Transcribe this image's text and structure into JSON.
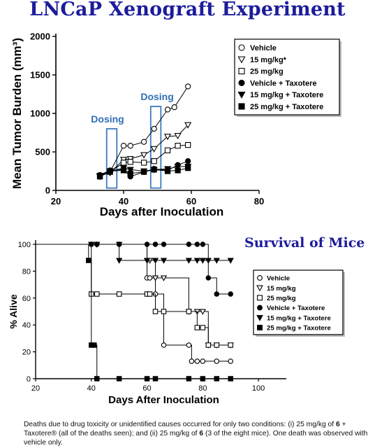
{
  "header": {
    "title": "LNCaP Xenograft Experiment"
  },
  "chart_data": [
    {
      "type": "line",
      "ylabel": "Mean Tumor Burden (mm³)",
      "xlabel": "Days after Inoculation",
      "xlim": [
        20,
        80
      ],
      "ylim": [
        0,
        2000
      ],
      "xticks": [
        "20",
        "40",
        "60",
        "80"
      ],
      "yticks": [
        "0",
        "500",
        "1000",
        "1500",
        "2000"
      ],
      "dosing_label": "Dosing",
      "dosing_windows": [
        [
          35,
          38
        ],
        [
          48,
          51
        ]
      ],
      "legend_position": "top-right",
      "series": [
        {
          "name": "Vehicle",
          "marker": "circle-open",
          "x": [
            33,
            36,
            40,
            42,
            46,
            49,
            53,
            55,
            59
          ],
          "y": [
            200,
            240,
            580,
            580,
            630,
            800,
            1050,
            1080,
            1350
          ]
        },
        {
          "name": "15 mg/kg*",
          "marker": "triangle-open",
          "x": [
            33,
            36,
            40,
            42,
            46,
            49,
            53,
            56,
            59
          ],
          "y": [
            190,
            230,
            400,
            410,
            460,
            540,
            700,
            710,
            850
          ]
        },
        {
          "name": "25 mg/kg",
          "marker": "square-open",
          "x": [
            33,
            36,
            40,
            42,
            46,
            49,
            53,
            56,
            59
          ],
          "y": [
            180,
            240,
            360,
            370,
            360,
            380,
            520,
            580,
            590
          ]
        },
        {
          "name": "Vehicle + Taxotere",
          "marker": "circle-filled",
          "x": [
            33,
            36,
            40,
            42,
            46,
            49,
            53,
            56,
            59
          ],
          "y": [
            200,
            260,
            270,
            180,
            240,
            280,
            260,
            330,
            380
          ]
        },
        {
          "name": "15 mg/kg + Taxotere",
          "marker": "triangle-filled",
          "x": [
            33,
            36,
            40,
            42,
            46,
            49,
            53,
            56,
            59
          ],
          "y": [
            180,
            250,
            290,
            270,
            250,
            270,
            280,
            310,
            310
          ]
        },
        {
          "name": "25 mg/kg + Taxotere",
          "marker": "square-filled",
          "x": [
            33,
            36,
            40,
            42,
            46,
            49,
            53,
            56,
            59
          ],
          "y": [
            190,
            250,
            260,
            220,
            240,
            270,
            250,
            260,
            290
          ]
        }
      ]
    },
    {
      "type": "line",
      "title": "Survival of Mice",
      "ylabel": "% Alive",
      "xlabel": "Days After Inoculation",
      "xlim": [
        20,
        110
      ],
      "ylim": [
        0,
        100
      ],
      "xticks": [
        "20",
        "40",
        "60",
        "80",
        "100"
      ],
      "yticks": [
        "0",
        "20",
        "40",
        "60",
        "80",
        "100"
      ],
      "legend_position": "right",
      "series": [
        {
          "name": "Vehicle",
          "marker": "circle-open",
          "x": [
            20,
            40,
            42,
            50,
            60,
            61,
            63,
            66,
            75,
            76,
            78,
            80,
            85,
            90
          ],
          "y": [
            100,
            100,
            100,
            100,
            75,
            75,
            63,
            25,
            25,
            13,
            13,
            13,
            13,
            13
          ]
        },
        {
          "name": "15 mg/kg",
          "marker": "triangle-open",
          "x": [
            20,
            40,
            42,
            50,
            60,
            61,
            63,
            66,
            75,
            78,
            80,
            82,
            85,
            90
          ],
          "y": [
            100,
            100,
            100,
            100,
            88,
            88,
            75,
            75,
            50,
            50,
            50,
            25,
            25,
            25
          ]
        },
        {
          "name": "25 mg/kg",
          "marker": "square-open",
          "x": [
            20,
            40,
            42,
            50,
            60,
            61,
            63,
            66,
            75,
            78,
            80,
            82,
            85,
            90
          ],
          "y": [
            100,
            63,
            63,
            63,
            63,
            63,
            50,
            50,
            50,
            38,
            38,
            25,
            25,
            25
          ]
        },
        {
          "name": "Vehicle + Taxotere",
          "marker": "circle-filled",
          "x": [
            20,
            40,
            42,
            50,
            60,
            63,
            66,
            75,
            78,
            80,
            82,
            85,
            90
          ],
          "y": [
            100,
            100,
            100,
            100,
            100,
            100,
            100,
            100,
            100,
            100,
            75,
            63,
            63
          ]
        },
        {
          "name": "15 mg/kg + Taxotere",
          "marker": "triangle-filled",
          "x": [
            20,
            40,
            42,
            50,
            60,
            63,
            66,
            75,
            78,
            80,
            82,
            85,
            90
          ],
          "y": [
            100,
            100,
            100,
            88,
            88,
            88,
            88,
            88,
            88,
            88,
            88,
            88,
            88
          ]
        },
        {
          "name": "25 mg/kg + Taxotere",
          "marker": "square-filled",
          "x": [
            20,
            39,
            40,
            41,
            42,
            50,
            60,
            63,
            75,
            80,
            85,
            90
          ],
          "y": [
            100,
            88,
            25,
            25,
            0,
            0,
            0,
            0,
            0,
            0,
            0,
            0
          ]
        }
      ]
    }
  ],
  "caption": {
    "parts": [
      "Deaths due to drug toxicity or unidentified causes occurred for only two conditions: (i) 25 mg/kg of ",
      "6",
      " + Taxotere® (all of the deaths seen); and (ii) 25 mg/kg of ",
      "6",
      " (3 of the eight mice). One death was observed with vehicle only."
    ]
  },
  "colors": {
    "title": "#1c1c9c",
    "dosing_box": "#3a7abf",
    "dosing_text": "#2f6fb5"
  }
}
